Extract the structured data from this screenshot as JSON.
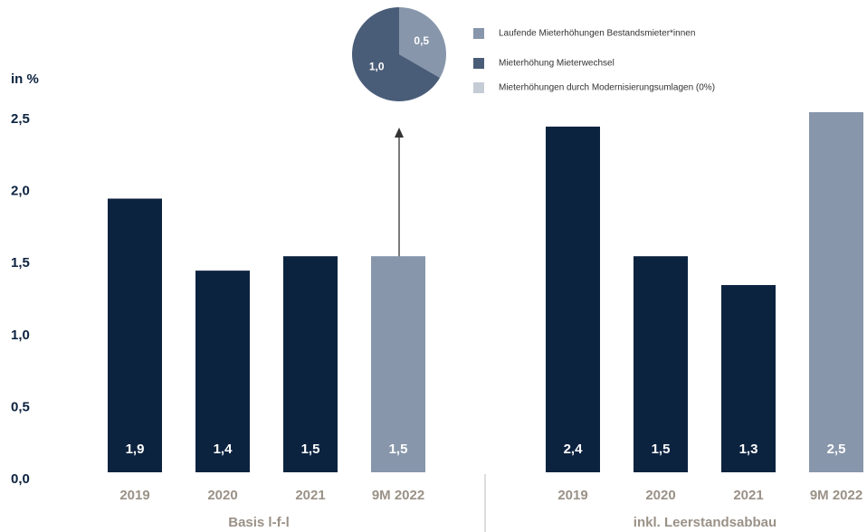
{
  "chart_data": [
    {
      "type": "bar",
      "ylabel": "in %",
      "xlabel": "Basis l-f-l",
      "categories": [
        "2019",
        "2020",
        "2021",
        "9M 2022"
      ],
      "values": [
        1.9,
        1.4,
        1.5,
        1.5
      ],
      "value_labels": [
        "1,9",
        "1,4",
        "1,5",
        "1,5"
      ],
      "colors": [
        "#0c2340",
        "#0c2340",
        "#0c2340",
        "#8796ab"
      ],
      "ylim": [
        0,
        2.6
      ],
      "yticks": [
        {
          "value": 0,
          "label": "0,0"
        },
        {
          "value": 0.5,
          "label": "0,5"
        },
        {
          "value": 1,
          "label": "1,0"
        },
        {
          "value": 1.5,
          "label": "1,5"
        },
        {
          "value": 2,
          "label": "2,0"
        },
        {
          "value": 2.5,
          "label": "2,5"
        }
      ]
    },
    {
      "type": "bar",
      "xlabel": "inkl. Leerstandsabbau",
      "categories": [
        "2019",
        "2020",
        "2021",
        "9M 2022"
      ],
      "values": [
        2.4,
        1.5,
        1.3,
        2.5
      ],
      "value_labels": [
        "2,4",
        "1,5",
        "1,3",
        "2,5"
      ],
      "colors": [
        "#0c2340",
        "#0c2340",
        "#0c2340",
        "#8796ab"
      ],
      "ylim": [
        0,
        2.6
      ]
    },
    {
      "type": "pie",
      "categories": [
        "Laufende Mieterhöhungen Bestandsmieter*innen",
        "Mieterhöhung Mieterwechsel",
        "Mieterhöhungen durch Modernisierungsumlagen (0%)"
      ],
      "values": [
        0.5,
        1.0,
        0
      ],
      "value_labels": [
        "0,5",
        "1,0",
        null
      ],
      "colors": [
        "#8796ab",
        "#4a5d78",
        "#c5ccd6"
      ]
    }
  ]
}
